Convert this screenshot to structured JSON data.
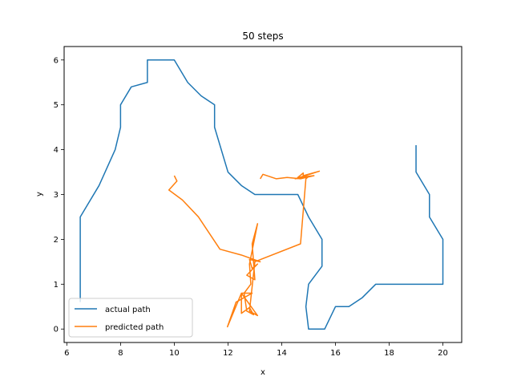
{
  "chart_data": {
    "type": "line",
    "title": "50 steps",
    "xlabel": "x",
    "ylabel": "y",
    "xlim": [
      5.9,
      20.7
    ],
    "ylim": [
      -0.3,
      6.3
    ],
    "xticks": [
      6,
      8,
      10,
      12,
      14,
      16,
      18,
      20
    ],
    "yticks": [
      0,
      1,
      2,
      3,
      4,
      5,
      6
    ],
    "grid": false,
    "legend_position": "lower-left",
    "series": [
      {
        "name": "actual path",
        "color": "#1f77b4",
        "points": [
          [
            6.5,
            0.6
          ],
          [
            6.5,
            2.5
          ],
          [
            7.2,
            3.2
          ],
          [
            7.5,
            3.6
          ],
          [
            7.8,
            4.0
          ],
          [
            8.0,
            4.5
          ],
          [
            8.0,
            5.0
          ],
          [
            8.4,
            5.4
          ],
          [
            9.0,
            5.5
          ],
          [
            9.0,
            6.0
          ],
          [
            10.0,
            6.0
          ],
          [
            10.5,
            5.5
          ],
          [
            11.0,
            5.2
          ],
          [
            11.5,
            5.0
          ],
          [
            11.5,
            4.5
          ],
          [
            12.0,
            3.5
          ],
          [
            12.5,
            3.2
          ],
          [
            13.0,
            3.0
          ],
          [
            14.6,
            3.0
          ],
          [
            15.0,
            2.5
          ],
          [
            15.5,
            2.0
          ],
          [
            15.5,
            1.4
          ],
          [
            15.0,
            1.0
          ],
          [
            14.9,
            0.5
          ],
          [
            15.0,
            0.0
          ],
          [
            15.6,
            0.0
          ],
          [
            16.0,
            0.5
          ],
          [
            16.5,
            0.5
          ],
          [
            17.0,
            0.7
          ],
          [
            17.5,
            1.0
          ],
          [
            20.0,
            1.0
          ],
          [
            20.0,
            2.0
          ],
          [
            19.5,
            2.5
          ],
          [
            19.5,
            3.0
          ],
          [
            19.0,
            3.5
          ],
          [
            19.0,
            4.1
          ]
        ]
      },
      {
        "name": "predicted path",
        "color": "#ff7f0e",
        "points": [
          [
            10.0,
            3.42
          ],
          [
            10.1,
            3.3
          ],
          [
            9.8,
            3.1
          ],
          [
            10.3,
            2.88
          ],
          [
            10.9,
            2.5
          ],
          [
            11.7,
            1.78
          ],
          [
            12.5,
            1.65
          ],
          [
            13.2,
            1.5
          ],
          [
            12.8,
            1.55
          ],
          [
            12.9,
            1.35
          ],
          [
            13.1,
            1.45
          ],
          [
            12.7,
            1.2
          ],
          [
            13.0,
            1.1
          ],
          [
            12.9,
            1.9
          ],
          [
            13.1,
            2.35
          ],
          [
            12.8,
            1.45
          ],
          [
            12.85,
            1.0
          ],
          [
            12.6,
            0.8
          ],
          [
            12.7,
            0.4
          ],
          [
            12.95,
            0.32
          ],
          [
            12.8,
            0.48
          ],
          [
            12.5,
            0.35
          ],
          [
            12.5,
            0.8
          ],
          [
            12.9,
            0.8
          ],
          [
            12.3,
            0.6
          ],
          [
            11.98,
            0.05
          ],
          [
            12.5,
            0.8
          ],
          [
            13.1,
            0.3
          ],
          [
            12.8,
            0.4
          ],
          [
            13.0,
            1.5
          ],
          [
            14.7,
            1.9
          ],
          [
            14.9,
            3.35
          ],
          [
            15.0,
            3.4
          ],
          [
            14.5,
            3.35
          ],
          [
            15.4,
            3.52
          ],
          [
            14.8,
            3.42
          ],
          [
            14.8,
            3.48
          ],
          [
            14.6,
            3.38
          ],
          [
            15.2,
            3.42
          ],
          [
            14.7,
            3.35
          ],
          [
            14.2,
            3.38
          ],
          [
            13.8,
            3.35
          ],
          [
            13.3,
            3.45
          ],
          [
            13.2,
            3.35
          ]
        ]
      }
    ]
  }
}
